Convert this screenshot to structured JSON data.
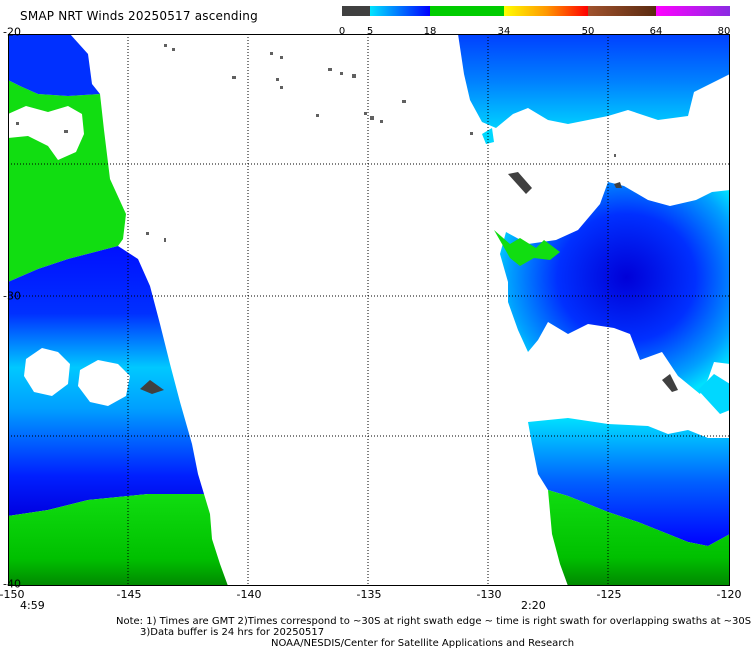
{
  "title": "SMAP NRT Winds 20250517 ascending",
  "colorbar": {
    "labels": [
      "0",
      "5",
      "18",
      "34",
      "50",
      "64",
      "80"
    ],
    "colors": [
      "#404040",
      "#00c8ff",
      "#0000ff",
      "#00cc00",
      "#ffd700",
      "#ff2a00",
      "#8b4513",
      "#ff00ff",
      "#8a2be2"
    ]
  },
  "map": {
    "lon_labels": [
      "-150",
      "-145",
      "-140",
      "-135",
      "-130",
      "-125",
      "-120"
    ],
    "lat_labels": [
      "-20",
      "-30",
      "-40"
    ],
    "grid": true,
    "swath_times": [
      "4:59",
      "2:20"
    ],
    "land_color": "#555555"
  },
  "notes": {
    "line1": "Note: 1) Times are GMT 2)Times correspond to ~30S at right swath edge ~ time is right swath for overlapping swaths at ~30S",
    "line2": "3)Data buffer is 24 hrs for 20250517",
    "line3": "NOAA/NESDIS/Center for Satellite Applications and Research"
  }
}
